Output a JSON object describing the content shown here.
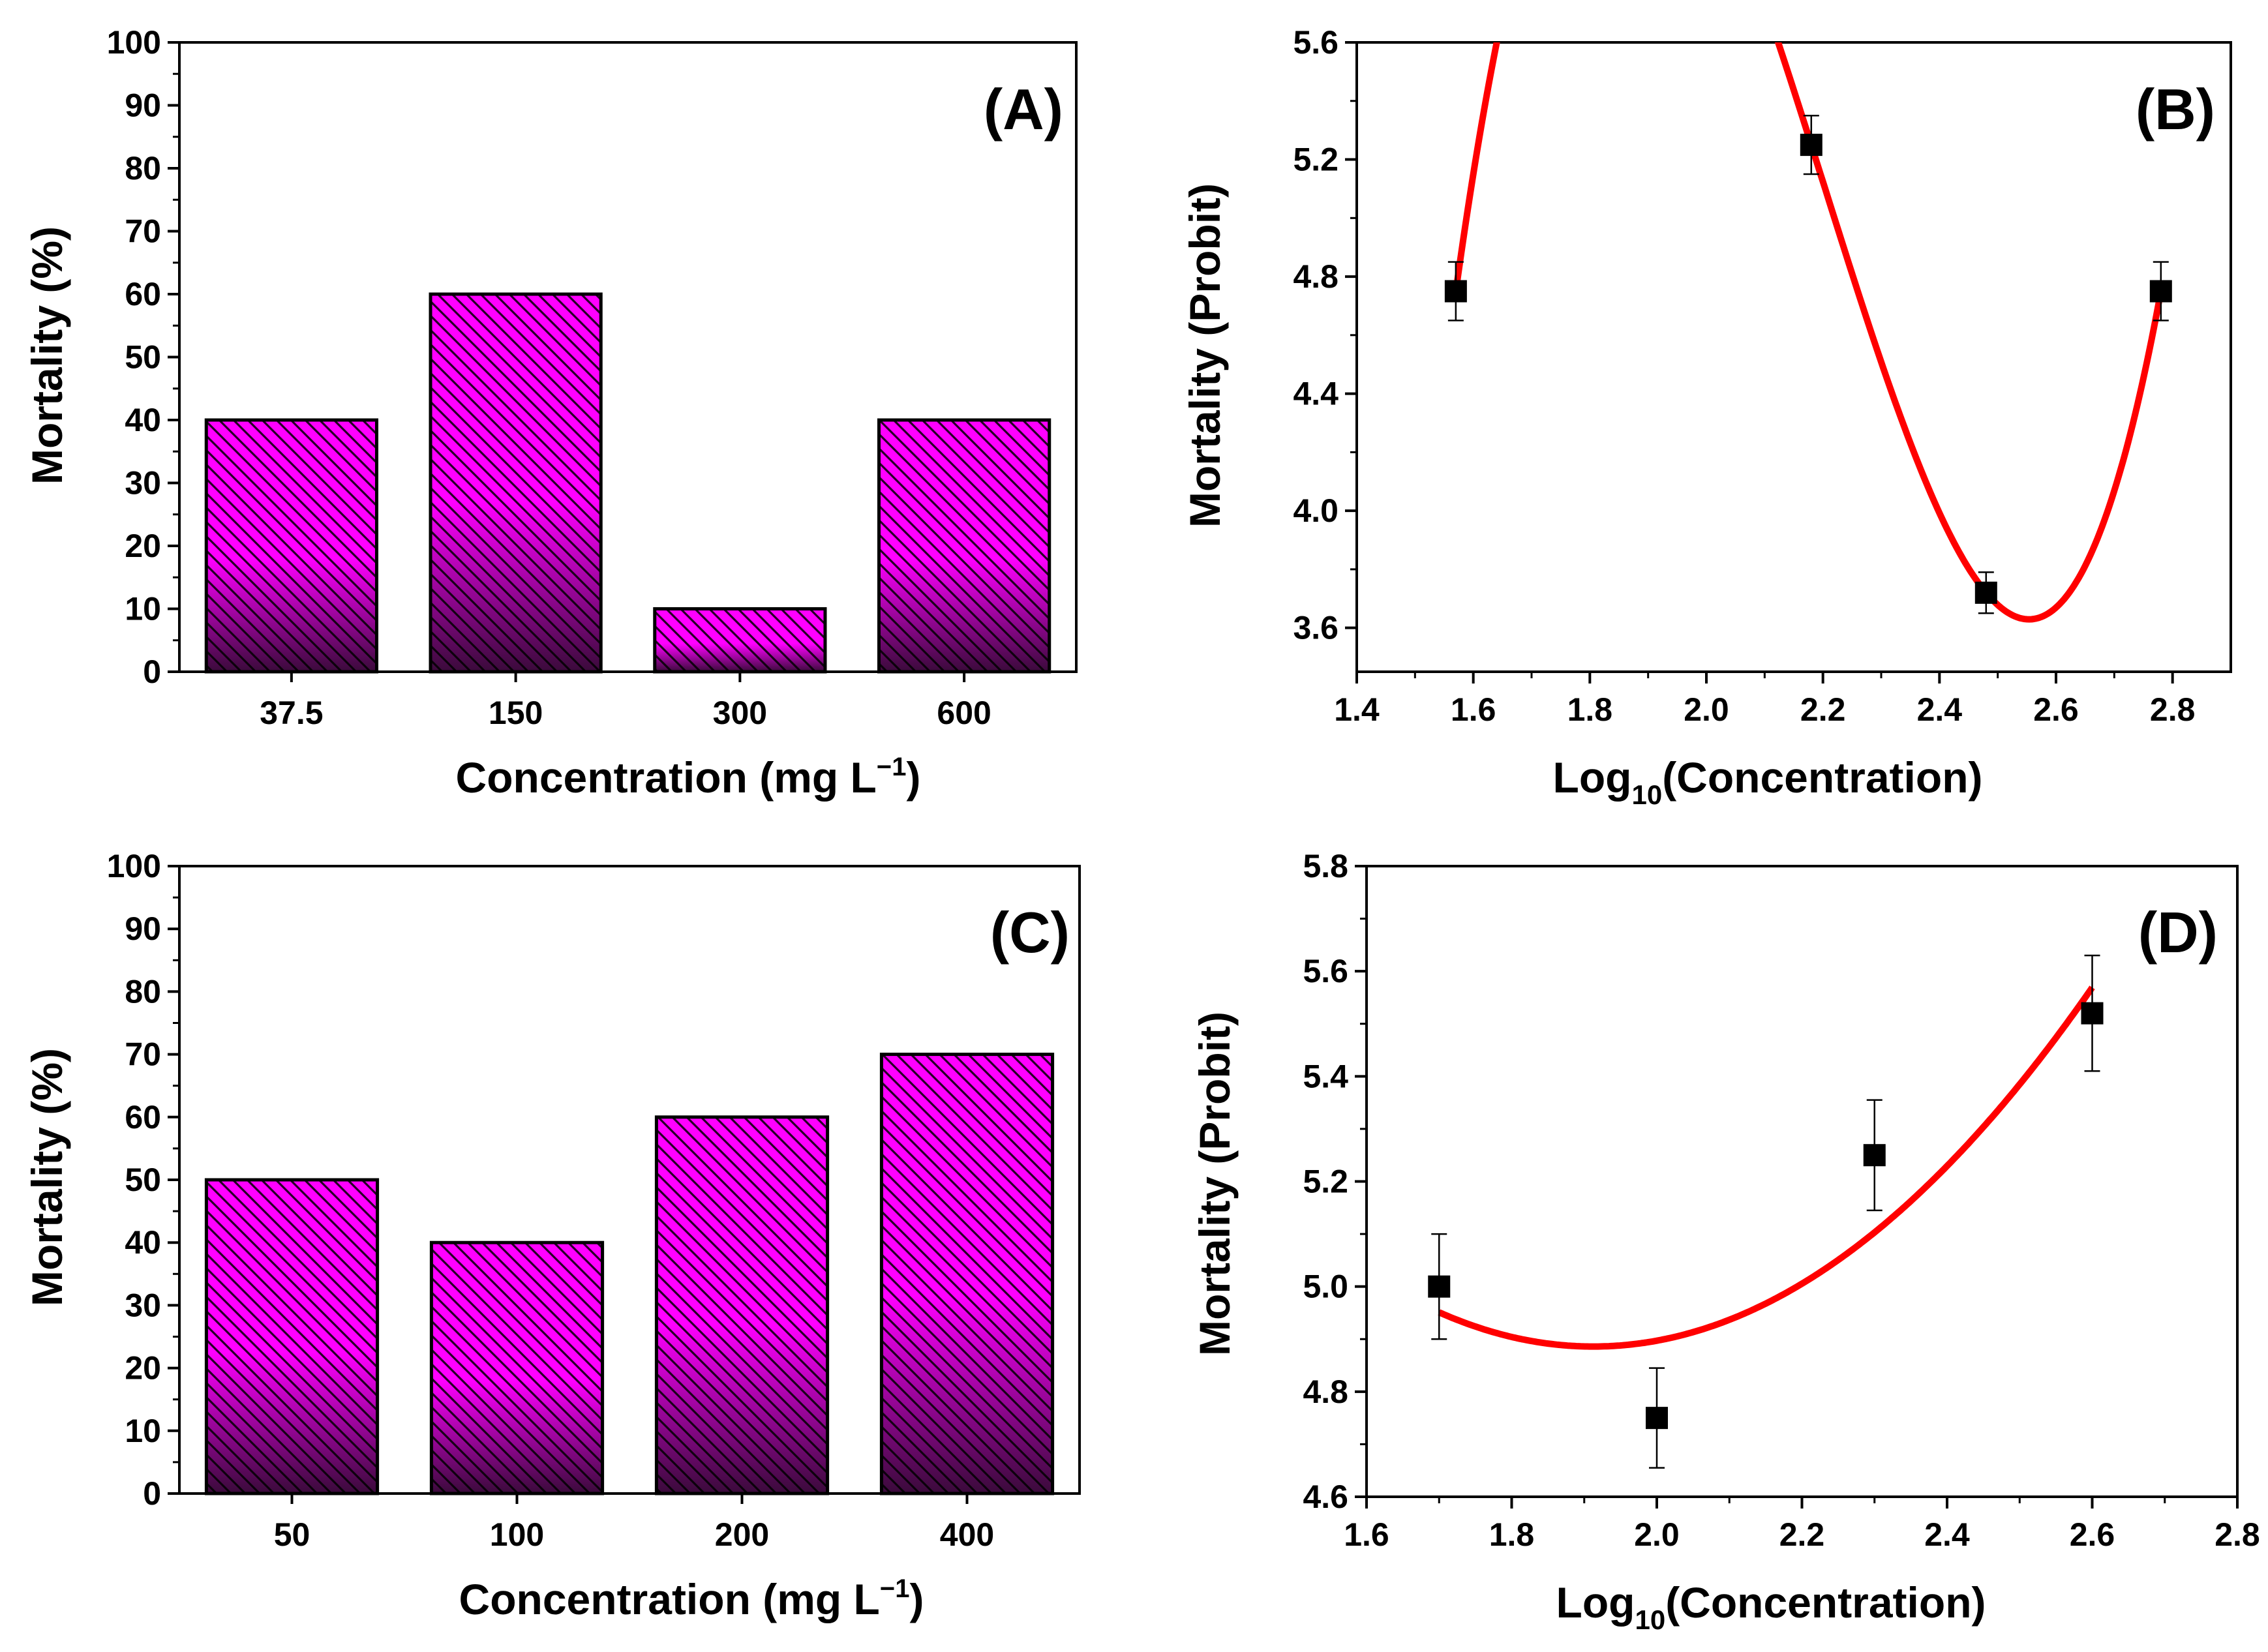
{
  "chart_data": [
    {
      "id": "A",
      "type": "bar",
      "panel_label": "(A)",
      "categories": [
        "37.5",
        "150",
        "300",
        "600"
      ],
      "values": [
        40,
        60,
        10,
        40
      ],
      "xlabel": "Concentration (mg L",
      "xlabel_sup": "−1",
      "xlabel_tail": ")",
      "ylabel": "Mortality (%)",
      "ylim": [
        0,
        100
      ],
      "yticks": [
        "0",
        "10",
        "20",
        "30",
        "40",
        "50",
        "60",
        "70",
        "80",
        "90",
        "100"
      ],
      "grid": false,
      "bar_fill": [
        "#ff00ff",
        "#3a0a3a"
      ]
    },
    {
      "id": "B",
      "type": "scatter",
      "panel_label": "(B)",
      "x": [
        1.57,
        2.18,
        2.48,
        2.78
      ],
      "y": [
        4.75,
        5.25,
        3.72,
        4.75
      ],
      "yerr": [
        0.1,
        0.1,
        0.07,
        0.1
      ],
      "fit": {
        "type": "polynomial",
        "degree": 3,
        "x_range": [
          1.57,
          2.78
        ]
      },
      "xlabel": "Log",
      "xlabel_sub": "10",
      "xlabel_tail": "(Concentration)",
      "ylabel": "Mortality (Probit)",
      "xlim": [
        1.4,
        2.9
      ],
      "ylim": [
        3.45,
        5.6
      ],
      "xticks": [
        "1.4",
        "1.6",
        "1.8",
        "2.0",
        "2.2",
        "2.4",
        "2.6",
        "2.8"
      ],
      "yticks": [
        "3.6",
        "4.0",
        "4.4",
        "4.8",
        "5.2",
        "5.6"
      ],
      "grid": false,
      "fit_color": "#ff0000",
      "marker_color": "#000000"
    },
    {
      "id": "C",
      "type": "bar",
      "panel_label": "(C)",
      "categories": [
        "50",
        "100",
        "200",
        "400"
      ],
      "values": [
        50,
        40,
        60,
        70
      ],
      "xlabel": "Concentration (mg L",
      "xlabel_sup": "−1",
      "xlabel_tail": ")",
      "ylabel": "Mortality (%)",
      "ylim": [
        0,
        100
      ],
      "yticks": [
        "0",
        "10",
        "20",
        "30",
        "40",
        "50",
        "60",
        "70",
        "80",
        "90",
        "100"
      ],
      "grid": false,
      "bar_fill": [
        "#ff00ff",
        "#3a0a3a"
      ]
    },
    {
      "id": "D",
      "type": "scatter",
      "panel_label": "(D)",
      "x": [
        1.7,
        2.0,
        2.3,
        2.6
      ],
      "y": [
        5.0,
        4.75,
        5.25,
        5.52
      ],
      "yerr": [
        0.1,
        0.095,
        0.105,
        0.11
      ],
      "fit": {
        "type": "polynomial",
        "degree": 2,
        "x_range": [
          1.7,
          2.6
        ]
      },
      "xlabel": "Log",
      "xlabel_sub": "10",
      "xlabel_tail": "(Concentration)",
      "ylabel": "Mortality (Probit)",
      "xlim": [
        1.6,
        2.8
      ],
      "ylim": [
        4.6,
        5.8
      ],
      "xticks": [
        "1.6",
        "1.8",
        "2.0",
        "2.2",
        "2.4",
        "2.6",
        "2.8"
      ],
      "yticks": [
        "4.6",
        "4.8",
        "5.0",
        "5.2",
        "5.4",
        "5.6",
        "5.8"
      ],
      "grid": false,
      "fit_color": "#ff0000",
      "marker_color": "#000000"
    }
  ]
}
